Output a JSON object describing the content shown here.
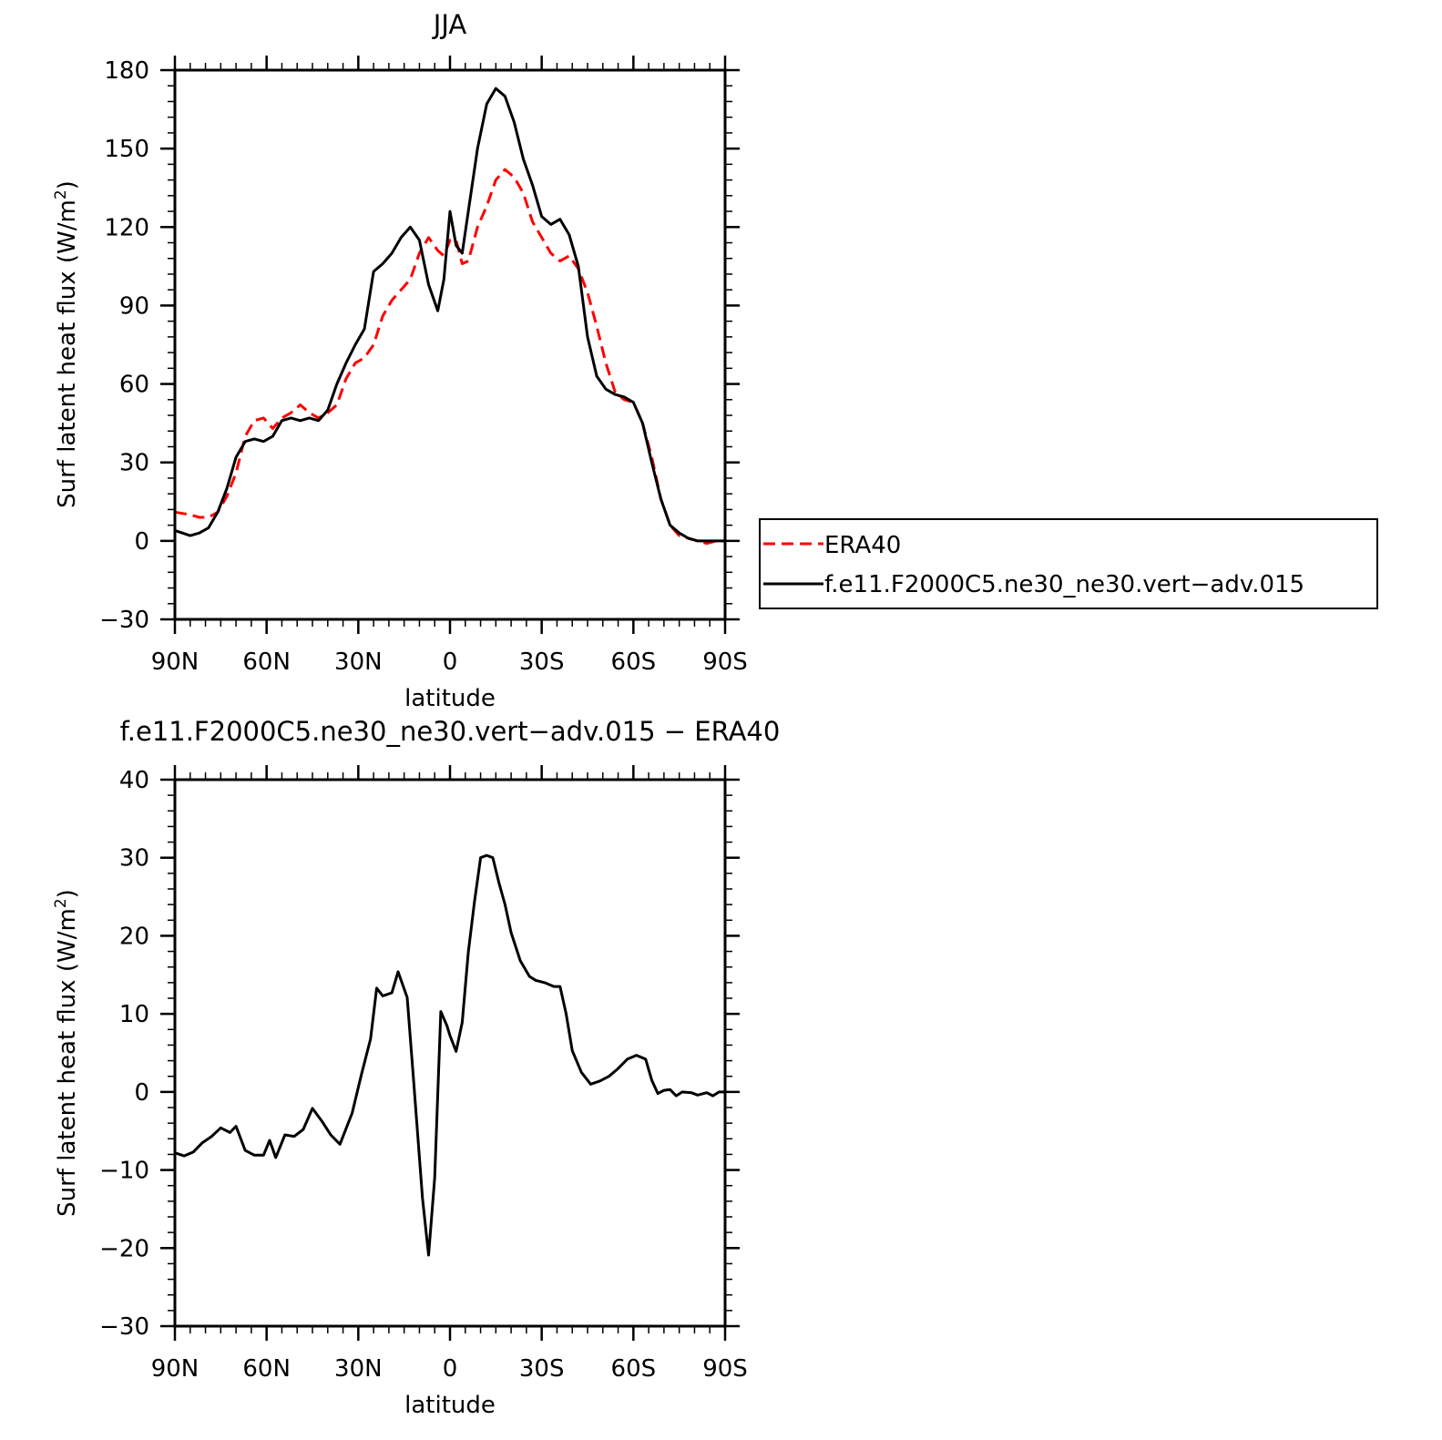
{
  "chart_data": [
    {
      "type": "line",
      "title": "JJA",
      "xlabel": "latitude",
      "ylabel": "Surf latent heat flux (W/m",
      "ylabel_sup": "2",
      "ylabel_close": ")",
      "xlim": [
        90,
        -90
      ],
      "ylim": [
        -30,
        180
      ],
      "x_ticks": [
        90,
        60,
        30,
        0,
        -30,
        -60,
        -90
      ],
      "x_tick_labels": [
        "90N",
        "60N",
        "30N",
        "0",
        "30S",
        "60S",
        "90S"
      ],
      "y_ticks": [
        -30,
        0,
        30,
        60,
        90,
        120,
        150,
        180
      ],
      "y_tick_labels": [
        "−30",
        "0",
        "30",
        "60",
        "90",
        "120",
        "150",
        "180"
      ],
      "legend_position": "right",
      "series": [
        {
          "name": "ERA40",
          "color": "#ff0000",
          "dash": "dashed",
          "x": [
            90,
            85,
            82,
            79,
            76,
            73,
            70,
            67,
            64,
            61,
            58,
            55,
            52,
            49,
            46,
            43,
            40,
            37,
            34,
            31,
            28,
            25,
            22,
            19,
            16,
            13,
            10,
            7,
            4,
            2,
            0,
            -2,
            -4,
            -6,
            -9,
            -12,
            -15,
            -18,
            -21,
            -24,
            -27,
            -30,
            -33,
            -36,
            -39,
            -42,
            -45,
            -48,
            -51,
            -54,
            -57,
            -60,
            -63,
            -66,
            -69,
            -72,
            -75,
            -78,
            -81,
            -84,
            -87,
            -90
          ],
          "y": [
            11,
            10,
            9,
            9,
            11,
            17,
            26,
            40,
            46,
            47,
            43,
            47,
            49,
            52,
            49,
            47,
            49,
            52,
            62,
            68,
            70,
            75,
            86,
            92,
            96,
            100,
            110,
            116,
            111,
            109,
            115,
            115,
            106,
            107,
            120,
            128,
            138,
            142,
            139,
            133,
            122,
            116,
            110,
            107,
            109,
            104,
            95,
            82,
            68,
            57,
            54,
            53,
            45,
            32,
            16,
            6,
            2,
            1,
            0,
            -1,
            0,
            0
          ]
        },
        {
          "name": "f.e11.F2000C5.ne30_ne30.vert−adv.015",
          "color": "#000000",
          "dash": "solid",
          "x": [
            90,
            85,
            82,
            79,
            76,
            73,
            70,
            67,
            64,
            61,
            58,
            55,
            52,
            49,
            46,
            43,
            40,
            37,
            34,
            31,
            28,
            25,
            22,
            19,
            16,
            13,
            10,
            7,
            4,
            2,
            0,
            -2,
            -4,
            -6,
            -9,
            -12,
            -15,
            -18,
            -21,
            -24,
            -27,
            -30,
            -33,
            -36,
            -39,
            -42,
            -45,
            -48,
            -51,
            -54,
            -57,
            -60,
            -63,
            -66,
            -69,
            -72,
            -75,
            -78,
            -81,
            -84,
            -87,
            -90
          ],
          "y": [
            4,
            2,
            3,
            5,
            11,
            20,
            32,
            38,
            39,
            38,
            40,
            46,
            47,
            46,
            47,
            46,
            50,
            60,
            68,
            75,
            81,
            103,
            106,
            110,
            116,
            120,
            115,
            98,
            88,
            100,
            126,
            113,
            110,
            126,
            150,
            167,
            173,
            170,
            160,
            146,
            136,
            124,
            121,
            123,
            117,
            105,
            78,
            63,
            58,
            56,
            55,
            53,
            45,
            30,
            16,
            6,
            3,
            1,
            0,
            0,
            0,
            0
          ]
        }
      ]
    },
    {
      "type": "line",
      "title": "f.e11.F2000C5.ne30_ne30.vert−adv.015 − ERA40",
      "xlabel": "latitude",
      "ylabel": "Surf latent heat flux (W/m",
      "ylabel_sup": "2",
      "ylabel_close": ")",
      "xlim": [
        90,
        -90
      ],
      "ylim": [
        -30,
        40
      ],
      "x_ticks": [
        90,
        60,
        30,
        0,
        -30,
        -60,
        -90
      ],
      "x_tick_labels": [
        "90N",
        "60N",
        "30N",
        "0",
        "30S",
        "60S",
        "90S"
      ],
      "y_ticks": [
        -30,
        -20,
        -10,
        0,
        10,
        20,
        30,
        40
      ],
      "y_tick_labels": [
        "−30",
        "−20",
        "−10",
        "0",
        "10",
        "20",
        "30",
        "40"
      ],
      "series": [
        {
          "color": "#000000",
          "dash": "solid",
          "x": [
            90,
            87,
            84,
            81,
            78,
            75,
            72,
            70,
            67,
            64,
            61,
            59,
            57,
            54,
            51,
            48,
            45,
            42,
            39,
            36,
            32,
            29,
            26,
            24,
            22,
            19,
            17,
            14,
            12,
            9,
            7,
            5,
            3,
            1,
            0,
            -2,
            -4,
            -6,
            -8,
            -10,
            -12,
            -14,
            -16,
            -18,
            -20,
            -23,
            -26,
            -28,
            -31,
            -34,
            -36,
            -38,
            -40,
            -43,
            -46,
            -49,
            -52,
            -55,
            -58,
            -61,
            -64,
            -66,
            -68,
            -70,
            -72,
            -74,
            -76,
            -79,
            -81,
            -84,
            -86,
            -88,
            -90
          ],
          "y": [
            -7.8,
            -8.2,
            -7.7,
            -6.5,
            -5.7,
            -4.6,
            -5.2,
            -4.4,
            -7.5,
            -8.1,
            -8.1,
            -6.2,
            -8.4,
            -5.5,
            -5.7,
            -4.8,
            -2.1,
            -3.7,
            -5.5,
            -6.7,
            -2.7,
            2.2,
            6.8,
            13.3,
            12.3,
            12.7,
            15.4,
            12.1,
            2.0,
            -13.6,
            -20.9,
            -11.0,
            10.3,
            8.5,
            7.2,
            5.2,
            8.9,
            17.9,
            24.3,
            30.0,
            30.3,
            30.0,
            26.8,
            24.0,
            20.4,
            16.8,
            14.8,
            14.3,
            14.0,
            13.5,
            13.5,
            10.0,
            5.3,
            2.5,
            1.0,
            1.4,
            2.0,
            3.0,
            4.2,
            4.7,
            4.2,
            1.5,
            -0.2,
            0.2,
            0.3,
            -0.5,
            0.0,
            -0.1,
            -0.4,
            -0.1,
            -0.5,
            0.0,
            0.0
          ]
        }
      ]
    }
  ]
}
